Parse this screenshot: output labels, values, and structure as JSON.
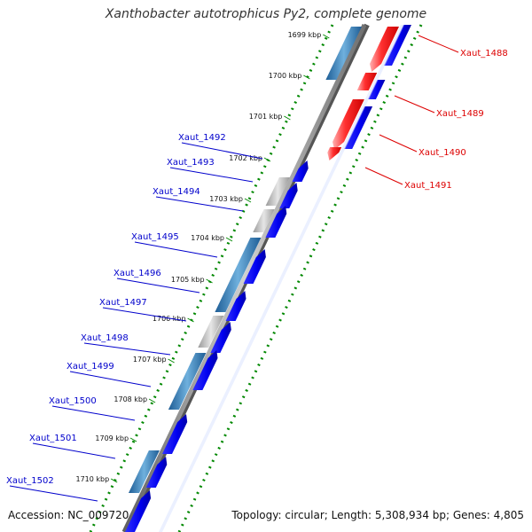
{
  "title": "Xanthobacter autotrophicus Py2, complete genome",
  "footer": {
    "accession": "Accession: NC_009720",
    "topology": "Topology: circular; Length: 5,308,934 bp; Genes: 4,805"
  },
  "kbp_ticks": [
    "1699 kbp",
    "1700 kbp",
    "1701 kbp",
    "1702 kbp",
    "1703 kbp",
    "1704 kbp",
    "1705 kbp",
    "1706 kbp",
    "1707 kbp",
    "1708 kbp",
    "1709 kbp",
    "1710 kbp"
  ],
  "genes_right": [
    "Xaut_1488",
    "Xaut_1489",
    "Xaut_1490",
    "Xaut_1491"
  ],
  "genes_left": [
    "Xaut_1492",
    "Xaut_1493",
    "Xaut_1494",
    "Xaut_1495",
    "Xaut_1496",
    "Xaut_1497",
    "Xaut_1498",
    "Xaut_1499",
    "Xaut_1500",
    "Xaut_1501",
    "Xaut_1502"
  ],
  "colors": {
    "left_label": "#0000cc",
    "right_label": "#dd0000",
    "forward_cds": "#0000ee",
    "reverse_cds": "#ff0000",
    "gene_blue": "#3a80b8",
    "gene_gray": "#bdbdbd",
    "gc_dots": "#008800"
  }
}
